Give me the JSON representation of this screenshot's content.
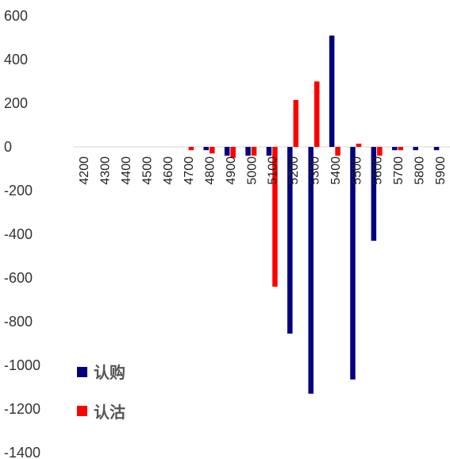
{
  "chart_data": {
    "type": "bar",
    "categories": [
      "4200",
      "4300",
      "4400",
      "4500",
      "4600",
      "4700",
      "4800",
      "4900",
      "5000",
      "5100",
      "5200",
      "5300",
      "5400",
      "5500",
      "5600",
      "5700",
      "5800",
      "5900"
    ],
    "series": [
      {
        "name": "认购",
        "color": "#000080",
        "values": [
          0,
          0,
          0,
          0,
          0,
          0,
          -15,
          -40,
          -40,
          -40,
          -855,
          -1130,
          510,
          -1065,
          -430,
          -15,
          -15,
          -15
        ]
      },
      {
        "name": "认沽",
        "color": "#ff0000",
        "values": [
          0,
          0,
          0,
          0,
          0,
          -15,
          -30,
          -50,
          -40,
          -640,
          215,
          300,
          -40,
          15,
          -40,
          -15,
          0,
          0
        ]
      }
    ],
    "yticks": [
      "600",
      "400",
      "200",
      "0",
      "-200",
      "-400",
      "-600",
      "-800",
      "-1000",
      "-1200",
      "-1400"
    ],
    "ylim": [
      -1400,
      600
    ],
    "grid": false,
    "legend_position": "bottom-left"
  }
}
